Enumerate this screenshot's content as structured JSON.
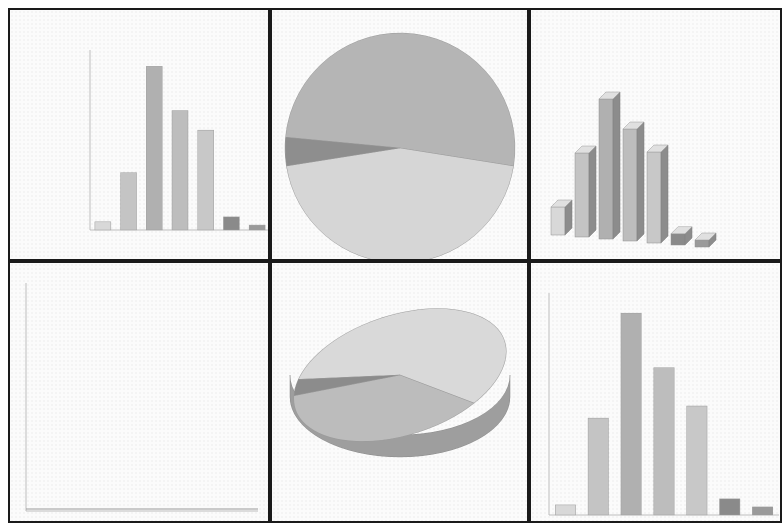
{
  "window": {
    "title": ""
  },
  "charts": {
    "bar_2d": {
      "title": ""
    },
    "pie_2d": {
      "title": ""
    },
    "bar_3d": {
      "title": ""
    },
    "line": {
      "title": ""
    },
    "pie_3d": {
      "title": ""
    },
    "bar_2d_b": {
      "title": ""
    }
  },
  "colors": {
    "frame": "#1a1a1a",
    "bar_light": "#cfcfcf",
    "bar_mid": "#b3b3b3",
    "bar_dark": "#8c8c8c"
  },
  "chart_data": [
    {
      "type": "bar",
      "categories": [
        "",
        "",
        "",
        "",
        "",
        "",
        ""
      ],
      "values": [
        5,
        35,
        100,
        73,
        61,
        8,
        3
      ],
      "ylim": [
        0,
        110
      ]
    },
    {
      "type": "pie",
      "values": [
        51,
        45,
        4
      ]
    },
    {
      "type": "bar",
      "categories": [
        "",
        "",
        "",
        "",
        "",
        "",
        ""
      ],
      "values": [
        20,
        60,
        100,
        80,
        65,
        8,
        5
      ]
    },
    {
      "type": "line",
      "x": [
        0,
        1,
        2,
        3,
        4,
        5,
        6
      ],
      "series": [
        {
          "values": [
            0,
            0,
            0,
            0,
            0,
            0,
            0
          ]
        }
      ]
    },
    {
      "type": "pie",
      "values": [
        58,
        38,
        4
      ]
    },
    {
      "type": "bar",
      "categories": [
        "",
        "",
        "",
        "",
        "",
        "",
        ""
      ],
      "values": [
        5,
        48,
        100,
        73,
        54,
        8,
        4
      ],
      "ylim": [
        0,
        110
      ]
    }
  ]
}
